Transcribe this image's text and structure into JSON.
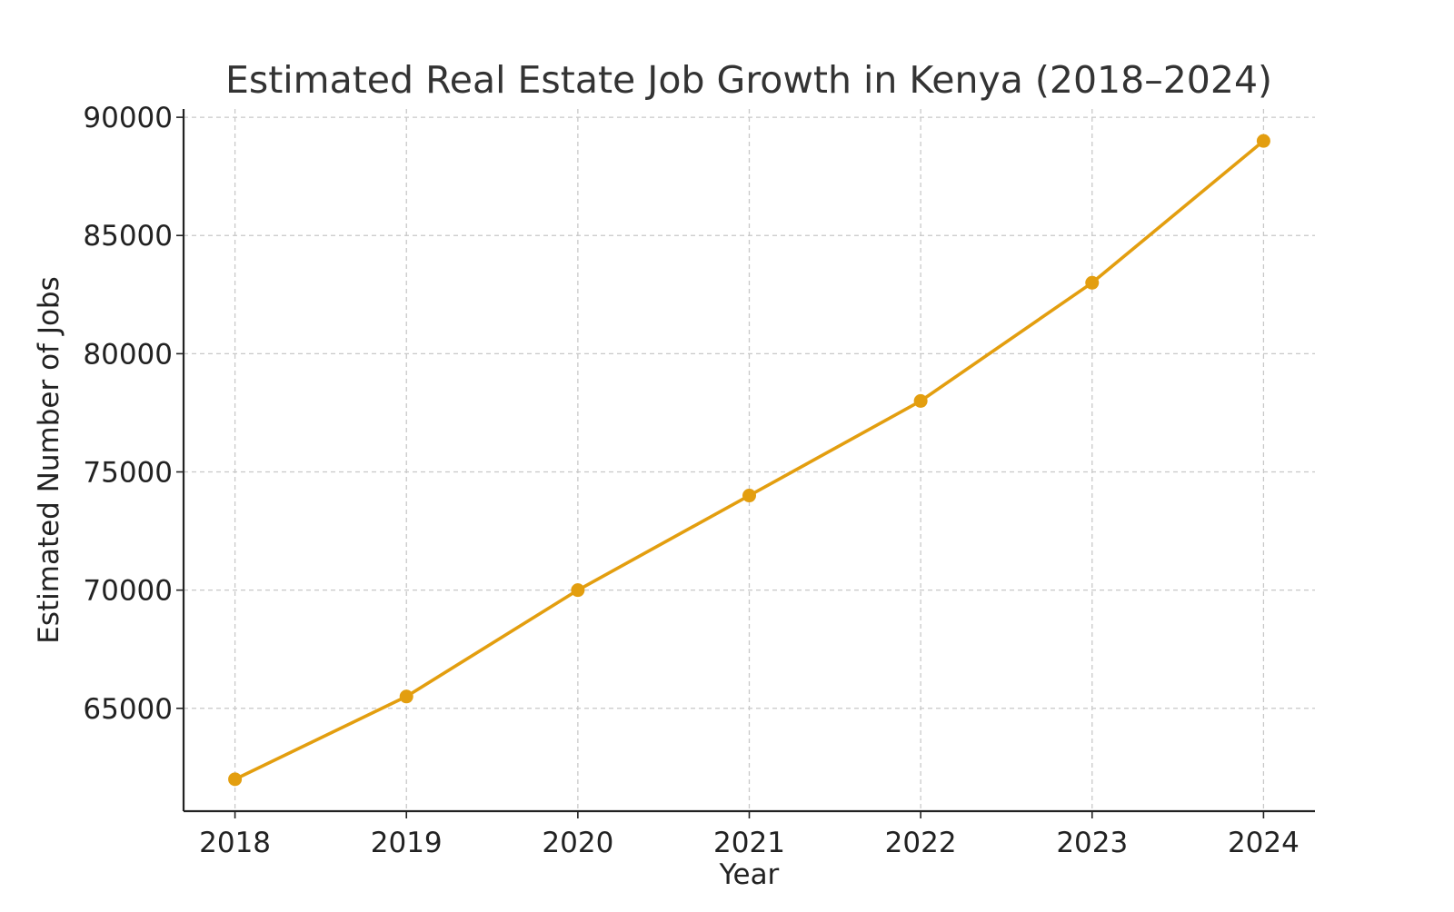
{
  "chart_data": {
    "type": "line",
    "title": "Estimated Real Estate Job Growth in Kenya (2018–2024)",
    "xlabel": "Year",
    "ylabel": "Estimated Number of Jobs",
    "x": [
      2018,
      2019,
      2020,
      2021,
      2022,
      2023,
      2024
    ],
    "x_tick_labels": [
      "2018",
      "2019",
      "2020",
      "2021",
      "2022",
      "2023",
      "2024"
    ],
    "y_ticks": [
      65000,
      70000,
      75000,
      80000,
      85000,
      90000
    ],
    "y_tick_labels": [
      "65000",
      "70000",
      "75000",
      "80000",
      "85000",
      "90000"
    ],
    "xlim": [
      2017.7,
      2024.3
    ],
    "ylim": [
      60650,
      90350
    ],
    "grid": true,
    "series": [
      {
        "values": [
          62000,
          65500,
          70000,
          74000,
          78000,
          83000,
          89000
        ],
        "color": "#e39e0f",
        "marker": "circle"
      }
    ]
  }
}
